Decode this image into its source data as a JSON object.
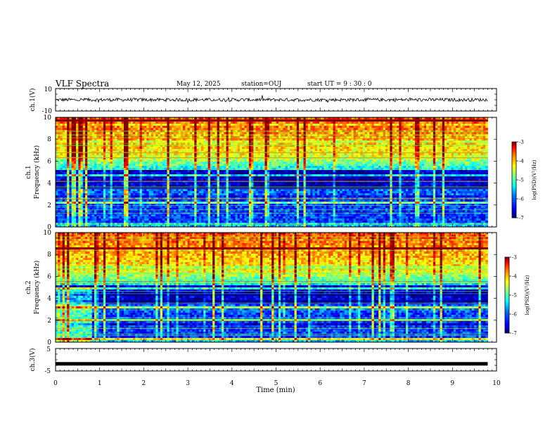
{
  "header": {
    "title": "VLF Spectra",
    "date": "May 12, 2025",
    "station": "station=OUJ",
    "start_ut": "start  UT  =   9  : 30 : 0"
  },
  "colors": {
    "colormap": [
      "#00007f",
      "#0000ff",
      "#0080ff",
      "#00ffff",
      "#80ff80",
      "#ffff00",
      "#ff8000",
      "#ff0000",
      "#800000"
    ],
    "waveform": "#000000"
  },
  "chart_data": [
    {
      "type": "line",
      "name": "ch1-waveform",
      "ylabel": "ch.1(V)",
      "ylim": [
        -10,
        10
      ],
      "yticks": [
        "10",
        "-10"
      ],
      "xlim": [
        0,
        10
      ],
      "mean": 0,
      "amplitude": 1.5,
      "data_end_min": 9.8
    },
    {
      "type": "heatmap",
      "name": "ch1-spectrogram",
      "ylabel": "ch.1\nFrequency (kHz)",
      "ylim": [
        0,
        10
      ],
      "yticks": [
        "0",
        "2",
        "4",
        "6",
        "8",
        "10"
      ],
      "xlim": [
        0,
        10
      ],
      "data_end_min": 9.8,
      "colorbar": {
        "label": "log(PSD)(V²/Hz)",
        "range": [
          -7,
          -3
        ],
        "ticks": [
          "-3",
          "-4",
          "-5",
          "-6",
          "-7"
        ]
      }
    },
    {
      "type": "heatmap",
      "name": "ch2-spectrogram",
      "ylabel": "ch.2\nFrequency (kHz)",
      "ylim": [
        0,
        10
      ],
      "yticks": [
        "0",
        "2",
        "4",
        "6",
        "8",
        "10"
      ],
      "xlim": [
        0,
        10
      ],
      "data_end_min": 9.8,
      "colorbar": {
        "label": "log(PSD)(V²/Hz)",
        "range": [
          -7,
          -3
        ],
        "ticks": [
          "-3",
          "-4",
          "-5",
          "-6",
          "-7"
        ]
      }
    },
    {
      "type": "line",
      "name": "ch3-waveform",
      "ylabel": "ch.3(V)",
      "ylim": [
        -5,
        5
      ],
      "yticks": [
        "5",
        "-5"
      ],
      "xlim": [
        0,
        10
      ],
      "mean": -1.8,
      "data_end_min": 9.8,
      "xlabel": "Time (min)",
      "xticks": [
        "0",
        "1",
        "2",
        "3",
        "4",
        "5",
        "6",
        "7",
        "8",
        "9",
        "10"
      ]
    }
  ]
}
